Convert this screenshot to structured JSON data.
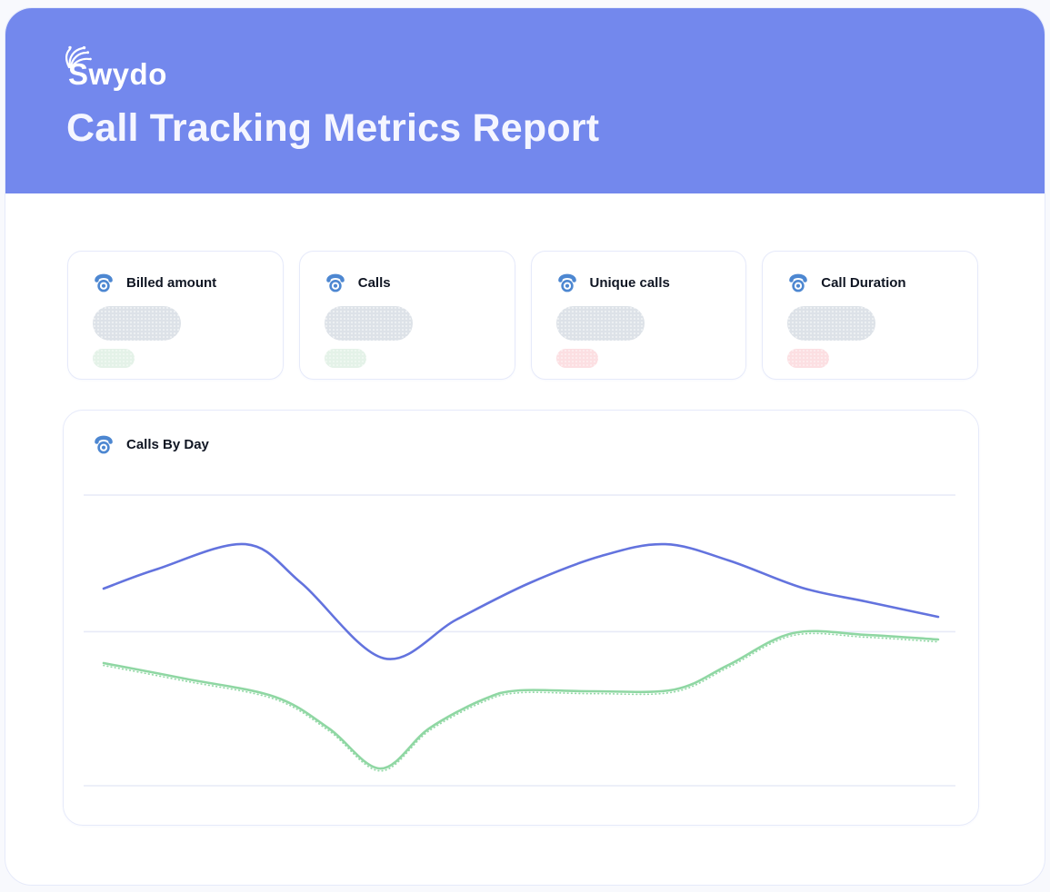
{
  "colors": {
    "header_bg": "#7388ed",
    "page_bg": "#f8f9fd",
    "card_bg": "#ffffff",
    "card_border": "#e6eafa",
    "icon_blue": "#4d87d1",
    "text_dark": "#101623",
    "title_text": "#f5f6ff",
    "pill_gray": "#dde2e8",
    "pill_green": "#e4f2e8",
    "pill_red": "#fcdfe2",
    "grid_line": "#e7eaf7",
    "line_blue": "#6373de",
    "line_green": "#8fd7a3"
  },
  "header": {
    "brand": "Swydo",
    "title": "Call Tracking Metrics Report"
  },
  "metrics": {
    "cards": [
      {
        "label": "Billed amount",
        "badge_color": "#e4f2e8"
      },
      {
        "label": "Calls",
        "badge_color": "#e4f2e8"
      },
      {
        "label": "Unique calls",
        "badge_color": "#fcdfe2"
      },
      {
        "label": "Call Duration",
        "badge_color": "#fcdfe2"
      }
    ]
  },
  "chart": {
    "title": "Calls By Day"
  },
  "chart_data": {
    "type": "line",
    "title": "Calls By Day",
    "xlabel": "",
    "ylabel": "",
    "axis_tick_labels_visible": false,
    "legend_visible": false,
    "grid": "horizontal",
    "ylim": [
      0,
      100
    ],
    "gridline_values": [
      0,
      53,
      100
    ],
    "series": [
      {
        "name": "blue-series",
        "color": "#6373de",
        "style": "solid",
        "points": [
          [
            0,
            67.8
          ],
          [
            6.3,
            74.4
          ],
          [
            17,
            83.1
          ],
          [
            23.7,
            69.7
          ],
          [
            33.6,
            43.8
          ],
          [
            42.3,
            57.2
          ],
          [
            51,
            69.7
          ],
          [
            59.7,
            79.1
          ],
          [
            67.3,
            83.1
          ],
          [
            74.9,
            77.5
          ],
          [
            83.7,
            68.1
          ],
          [
            91.3,
            63.4
          ],
          [
            100,
            58.1
          ]
        ]
      },
      {
        "name": "green-series",
        "color": "#8fd7a3",
        "style": "solid",
        "dotted_companion": true,
        "points": [
          [
            0,
            42.2
          ],
          [
            9.6,
            36.9
          ],
          [
            20.5,
            30.6
          ],
          [
            27,
            19.7
          ],
          [
            33.2,
            5.9
          ],
          [
            39,
            19.7
          ],
          [
            45.5,
            29.7
          ],
          [
            49.9,
            32.8
          ],
          [
            58.6,
            32.5
          ],
          [
            68.4,
            33.1
          ],
          [
            74.9,
            41.6
          ],
          [
            82.6,
            52.5
          ],
          [
            91.3,
            51.9
          ],
          [
            100,
            50.3
          ]
        ]
      }
    ]
  }
}
